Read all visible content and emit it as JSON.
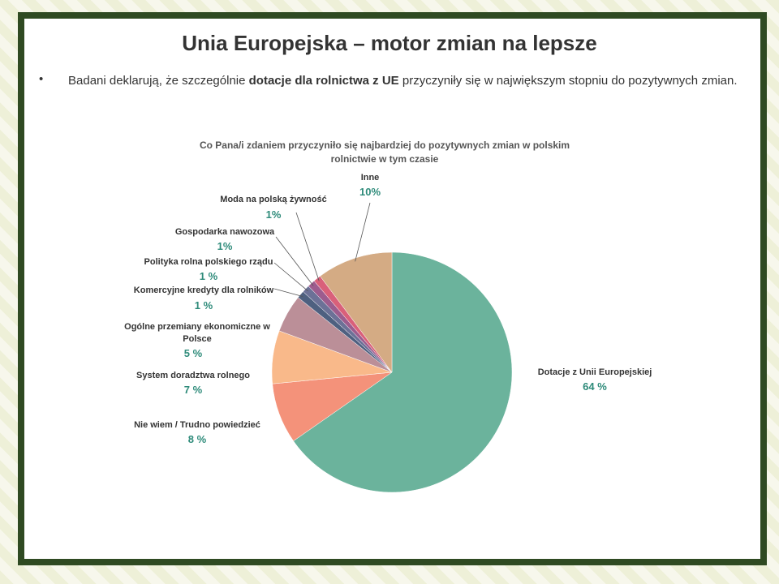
{
  "slide": {
    "title": "Unia Europejska – motor zmian na lepsze",
    "bullet": [
      "Badani deklarują, że szczególnie ",
      "dotacje dla rolnictwa z UE",
      " przyczyniły się w największym stopniu do pozytywnych zmian."
    ]
  },
  "chart_data": {
    "type": "pie",
    "title": "Co Pana/i zdaniem przyczyniło się najbardziej do pozytywnych zmian w polskim rolnictwie w tym czasie",
    "categories": [
      "Dotacje z Unii Europejskiej",
      "Nie wiem / Trudno powiedzieć",
      "System doradztwa rolnego",
      "Ogólne przemiany ekonomiczne w Polsce",
      "Komercyjne kredyty dla rolników",
      "Polityka rolna polskiego rządu",
      "Gospodarka nawozowa",
      "Moda na polską żywność",
      "Inne"
    ],
    "values": [
      64,
      8,
      7,
      5,
      1,
      1,
      1,
      1,
      10
    ],
    "value_labels": [
      "64 %",
      "8 %",
      "7 %",
      "5 %",
      "1 %",
      "1 %",
      "1%",
      "1%",
      "10%"
    ],
    "colors": [
      "#6bb39c",
      "#f4927a",
      "#f9b98a",
      "#bb8f98",
      "#4e6080",
      "#6c7197",
      "#9d5c8e",
      "#d9607a",
      "#d4ab84"
    ]
  }
}
